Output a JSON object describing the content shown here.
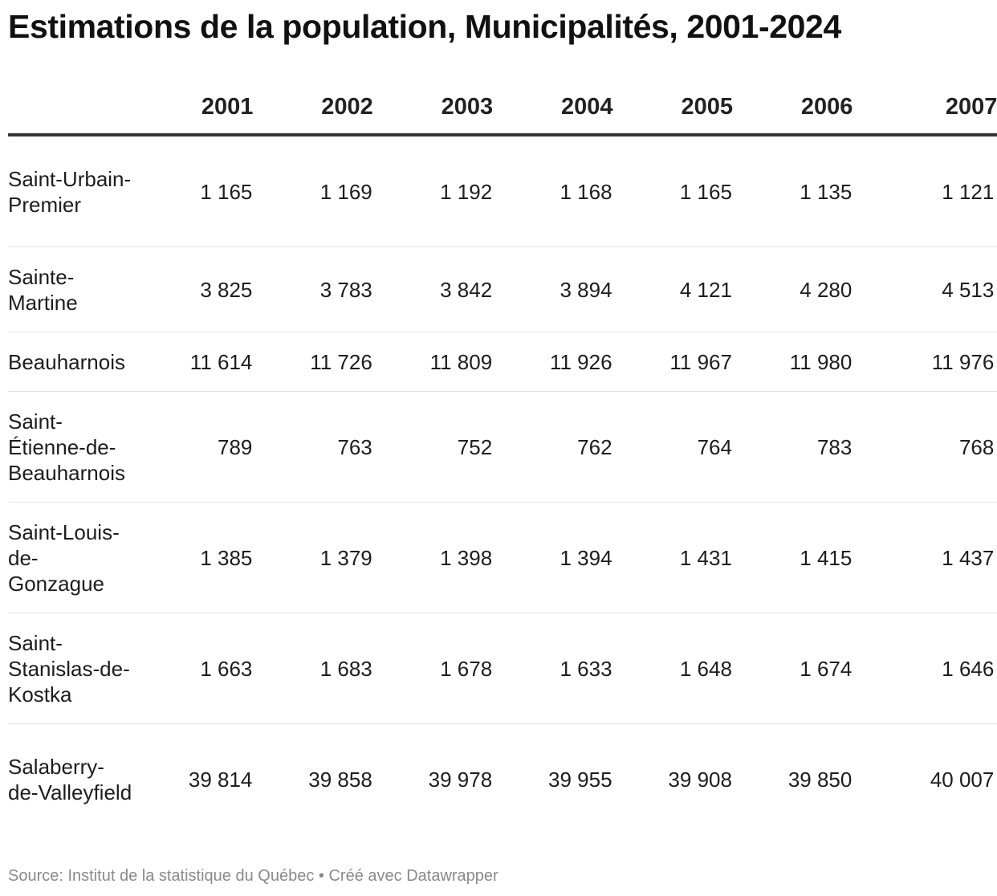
{
  "title": "Estimations de la population, Municipalités, 2001-2024",
  "source": {
    "label": "Source: Institut de la statistique du Québec",
    "separator": "•",
    "credit": "Créé avec Datawrapper"
  },
  "chart_data": {
    "type": "table",
    "title": "Estimations de la population, Municipalités, 2001-2024",
    "columns": [
      "",
      "2001",
      "2002",
      "2003",
      "2004",
      "2005",
      "2006",
      "2007"
    ],
    "rows": [
      {
        "name": "Saint-Urbain-Premier",
        "values": [
          "1 165",
          "1 169",
          "1 192",
          "1 168",
          "1 165",
          "1 135",
          "1 121"
        ]
      },
      {
        "name": "Sainte-Martine",
        "values": [
          "3 825",
          "3 783",
          "3 842",
          "3 894",
          "4 121",
          "4 280",
          "4 513"
        ]
      },
      {
        "name": "Beauharnois",
        "values": [
          "11 614",
          "11 726",
          "11 809",
          "11 926",
          "11 967",
          "11 980",
          "11 976"
        ]
      },
      {
        "name": "Saint-Étienne-de-Beauharnois",
        "values": [
          "789",
          "763",
          "752",
          "762",
          "764",
          "783",
          "768"
        ]
      },
      {
        "name": "Saint-Louis-de-Gonzague",
        "values": [
          "1 385",
          "1 379",
          "1 398",
          "1 394",
          "1 431",
          "1 415",
          "1 437"
        ]
      },
      {
        "name": "Saint-Stanislas-de-Kostka",
        "values": [
          "1 663",
          "1 683",
          "1 678",
          "1 633",
          "1 648",
          "1 674",
          "1 646"
        ]
      },
      {
        "name": "Salaberry-de-Valleyfield",
        "values": [
          "39 814",
          "39 858",
          "39 978",
          "39 955",
          "39 908",
          "39 850",
          "40 007"
        ]
      }
    ]
  }
}
